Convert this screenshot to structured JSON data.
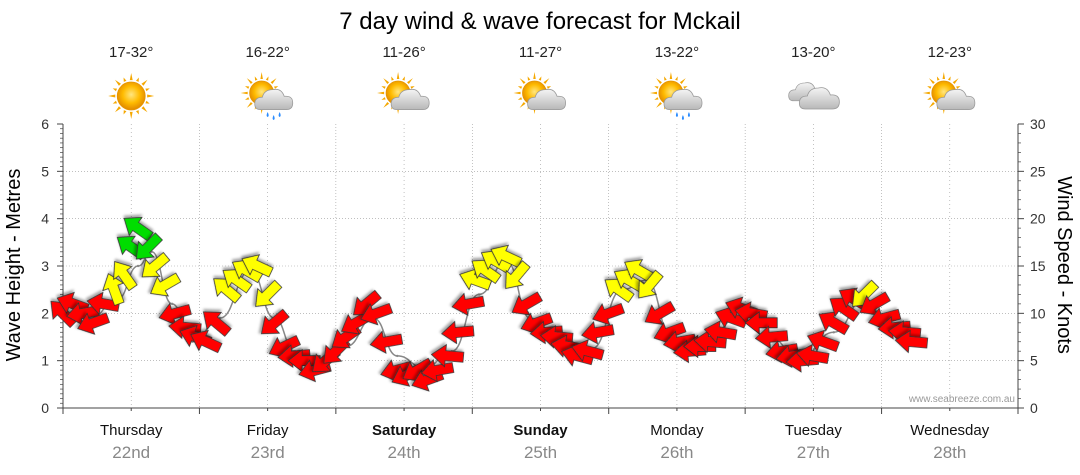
{
  "chart_data": {
    "type": "line",
    "title": "7 day wind & wave forecast for Mckail",
    "ylabel_left": "Wave Height - Metres",
    "ylabel_right": "Wind Speed - Knots",
    "ylim_left": [
      0,
      6
    ],
    "ylim_right": [
      0,
      30
    ],
    "yticks_left": [
      "0",
      "1",
      "2",
      "3",
      "4",
      "5",
      "6"
    ],
    "yticks_right": [
      "0",
      "5",
      "10",
      "15",
      "20",
      "25",
      "30"
    ],
    "days": [
      {
        "name": "Thursday",
        "date": "22nd",
        "temp": "17-32°",
        "weather": "sunny",
        "weekend": false
      },
      {
        "name": "Friday",
        "date": "23rd",
        "temp": "16-22°",
        "weather": "sun-cloud-rain",
        "weekend": false
      },
      {
        "name": "Saturday",
        "date": "24th",
        "temp": "11-26°",
        "weather": "sun-cloud",
        "weekend": true
      },
      {
        "name": "Sunday",
        "date": "25th",
        "temp": "11-27°",
        "weather": "sun-cloud",
        "weekend": true
      },
      {
        "name": "Monday",
        "date": "26th",
        "temp": "13-22°",
        "weather": "sun-cloud-rain",
        "weekend": false
      },
      {
        "name": "Tuesday",
        "date": "27th",
        "temp": "13-20°",
        "weather": "cloudy",
        "weekend": false
      },
      {
        "name": "Wednesday",
        "date": "28th",
        "temp": "12-23°",
        "weather": "sun-cloud",
        "weekend": false
      }
    ],
    "series": [
      {
        "name": "Wind Speed (knots)",
        "comment": "Each arrow shows wind speed (position) and direction (heading, degrees the wind blows toward); colour by strength.",
        "points": [
          {
            "t": 0.0,
            "v": 10,
            "dir": 225
          },
          {
            "t": 0.15,
            "v": 11,
            "dir": 200
          },
          {
            "t": 0.3,
            "v": 10,
            "dir": 170
          },
          {
            "t": 0.45,
            "v": 9,
            "dir": 160
          },
          {
            "t": 0.6,
            "v": 11,
            "dir": 190
          },
          {
            "t": 0.75,
            "v": 12.5,
            "dir": 250
          },
          {
            "t": 0.9,
            "v": 14,
            "dir": 235
          },
          {
            "t": 1.0,
            "v": 17,
            "dir": 215
          },
          {
            "t": 1.1,
            "v": 19,
            "dir": 215
          },
          {
            "t": 1.25,
            "v": 17,
            "dir": 135
          },
          {
            "t": 1.35,
            "v": 15,
            "dir": 140
          },
          {
            "t": 1.5,
            "v": 13,
            "dir": 150
          },
          {
            "t": 1.65,
            "v": 10,
            "dir": 165
          },
          {
            "t": 1.8,
            "v": 8.5,
            "dir": 185
          },
          {
            "t": 1.95,
            "v": 7.5,
            "dir": 200
          },
          {
            "t": 2.1,
            "v": 7,
            "dir": 205
          },
          {
            "t": 2.25,
            "v": 9,
            "dir": 220
          },
          {
            "t": 2.4,
            "v": 12.5,
            "dir": 220
          },
          {
            "t": 2.55,
            "v": 13.5,
            "dir": 215
          },
          {
            "t": 2.7,
            "v": 14.5,
            "dir": 210
          },
          {
            "t": 2.85,
            "v": 15,
            "dir": 205
          },
          {
            "t": 3.0,
            "v": 12,
            "dir": 135
          },
          {
            "t": 3.1,
            "v": 9,
            "dir": 140
          },
          {
            "t": 3.25,
            "v": 6.5,
            "dir": 155
          },
          {
            "t": 3.4,
            "v": 5.5,
            "dir": 175
          },
          {
            "t": 3.55,
            "v": 5,
            "dir": 180
          },
          {
            "t": 3.7,
            "v": 4,
            "dir": 165
          },
          {
            "t": 3.85,
            "v": 5,
            "dir": 140
          },
          {
            "t": 4.0,
            "v": 6,
            "dir": 135
          },
          {
            "t": 4.15,
            "v": 7.5,
            "dir": 145
          },
          {
            "t": 4.3,
            "v": 9,
            "dir": 150
          },
          {
            "t": 4.45,
            "v": 11,
            "dir": 140
          },
          {
            "t": 4.6,
            "v": 10,
            "dir": 160
          },
          {
            "t": 4.75,
            "v": 7,
            "dir": 170
          },
          {
            "t": 4.9,
            "v": 4,
            "dir": 165
          },
          {
            "t": 5.05,
            "v": 3.5,
            "dir": 155
          },
          {
            "t": 5.2,
            "v": 4,
            "dir": 150
          },
          {
            "t": 5.35,
            "v": 3,
            "dir": 160
          },
          {
            "t": 5.5,
            "v": 4,
            "dir": 170
          },
          {
            "t": 5.65,
            "v": 5.5,
            "dir": 185
          },
          {
            "t": 5.8,
            "v": 8,
            "dir": 175
          },
          {
            "t": 5.95,
            "v": 11,
            "dir": 170
          },
          {
            "t": 6.05,
            "v": 13.5,
            "dir": 200
          },
          {
            "t": 6.2,
            "v": 14.5,
            "dir": 215
          },
          {
            "t": 6.35,
            "v": 15.5,
            "dir": 210
          },
          {
            "t": 6.5,
            "v": 16,
            "dir": 205
          },
          {
            "t": 6.65,
            "v": 14,
            "dir": 130
          },
          {
            "t": 6.8,
            "v": 11,
            "dir": 150
          },
          {
            "t": 6.95,
            "v": 9,
            "dir": 160
          },
          {
            "t": 7.1,
            "v": 8,
            "dir": 175
          },
          {
            "t": 7.25,
            "v": 7.5,
            "dir": 185
          },
          {
            "t": 7.4,
            "v": 6.5,
            "dir": 190
          },
          {
            "t": 7.55,
            "v": 5.5,
            "dir": 195
          },
          {
            "t": 7.7,
            "v": 6,
            "dir": 195
          },
          {
            "t": 7.85,
            "v": 8,
            "dir": 170
          },
          {
            "t": 8.0,
            "v": 10,
            "dir": 160
          },
          {
            "t": 8.15,
            "v": 12.5,
            "dir": 215
          },
          {
            "t": 8.3,
            "v": 13.5,
            "dir": 210
          },
          {
            "t": 8.45,
            "v": 14.5,
            "dir": 210
          },
          {
            "t": 8.6,
            "v": 13,
            "dir": 130
          },
          {
            "t": 8.75,
            "v": 10,
            "dir": 150
          },
          {
            "t": 8.9,
            "v": 8,
            "dir": 160
          },
          {
            "t": 9.05,
            "v": 7,
            "dir": 170
          },
          {
            "t": 9.2,
            "v": 6,
            "dir": 175
          },
          {
            "t": 9.35,
            "v": 6.5,
            "dir": 180
          },
          {
            "t": 9.5,
            "v": 7,
            "dir": 185
          },
          {
            "t": 9.65,
            "v": 8,
            "dir": 190
          },
          {
            "t": 9.8,
            "v": 9.5,
            "dir": 200
          },
          {
            "t": 9.95,
            "v": 10.5,
            "dir": 200
          },
          {
            "t": 10.1,
            "v": 10,
            "dir": 190
          },
          {
            "t": 10.25,
            "v": 9,
            "dir": 180
          },
          {
            "t": 10.4,
            "v": 7.5,
            "dir": 175
          },
          {
            "t": 10.55,
            "v": 6,
            "dir": 170
          },
          {
            "t": 10.7,
            "v": 5.5,
            "dir": 170
          },
          {
            "t": 10.85,
            "v": 5,
            "dir": 175
          },
          {
            "t": 11.0,
            "v": 5.5,
            "dir": 190
          },
          {
            "t": 11.15,
            "v": 7,
            "dir": 200
          },
          {
            "t": 11.3,
            "v": 9,
            "dir": 210
          },
          {
            "t": 11.45,
            "v": 10.5,
            "dir": 215
          },
          {
            "t": 11.6,
            "v": 11.5,
            "dir": 210
          },
          {
            "t": 11.75,
            "v": 12,
            "dir": 135
          },
          {
            "t": 11.9,
            "v": 11,
            "dir": 150
          },
          {
            "t": 12.05,
            "v": 9.5,
            "dir": 165
          },
          {
            "t": 12.2,
            "v": 8.5,
            "dir": 175
          },
          {
            "t": 12.35,
            "v": 8,
            "dir": 185
          },
          {
            "t": 12.45,
            "v": 7,
            "dir": 185
          }
        ]
      },
      {
        "name": "Wave Height (m)",
        "points": [
          {
            "t": 0.0,
            "v": 2.0
          },
          {
            "t": 0.4,
            "v": 1.9
          },
          {
            "t": 0.8,
            "v": 2.3
          },
          {
            "t": 1.1,
            "v": 3.0
          },
          {
            "t": 1.3,
            "v": 3.3
          },
          {
            "t": 1.6,
            "v": 2.2
          },
          {
            "t": 1.9,
            "v": 1.4
          },
          {
            "t": 2.3,
            "v": 1.9
          },
          {
            "t": 2.75,
            "v": 2.9
          },
          {
            "t": 3.1,
            "v": 1.9
          },
          {
            "t": 3.4,
            "v": 1.2
          },
          {
            "t": 3.8,
            "v": 1.0
          },
          {
            "t": 4.15,
            "v": 1.3
          },
          {
            "t": 4.55,
            "v": 1.9
          },
          {
            "t": 4.9,
            "v": 1.1
          },
          {
            "t": 5.3,
            "v": 0.85
          },
          {
            "t": 5.7,
            "v": 1.2
          },
          {
            "t": 6.1,
            "v": 2.4
          },
          {
            "t": 6.5,
            "v": 3.1
          },
          {
            "t": 6.85,
            "v": 1.9
          },
          {
            "t": 7.3,
            "v": 1.45
          },
          {
            "t": 7.75,
            "v": 1.25
          },
          {
            "t": 8.2,
            "v": 2.5
          },
          {
            "t": 8.55,
            "v": 2.7
          },
          {
            "t": 8.95,
            "v": 1.4
          },
          {
            "t": 9.4,
            "v": 1.4
          },
          {
            "t": 9.9,
            "v": 1.9
          },
          {
            "t": 10.35,
            "v": 1.5
          },
          {
            "t": 10.8,
            "v": 1.05
          },
          {
            "t": 11.3,
            "v": 1.6
          },
          {
            "t": 11.75,
            "v": 2.3
          },
          {
            "t": 12.1,
            "v": 1.8
          },
          {
            "t": 12.45,
            "v": 1.4
          }
        ]
      }
    ],
    "colors": {
      "calm": "#ff0000",
      "moderate": "#ffff00",
      "fresh": "#00dd00",
      "wave_line": "#888888",
      "grid": "#999999"
    },
    "credit": "www.seabreeze.com.au"
  }
}
